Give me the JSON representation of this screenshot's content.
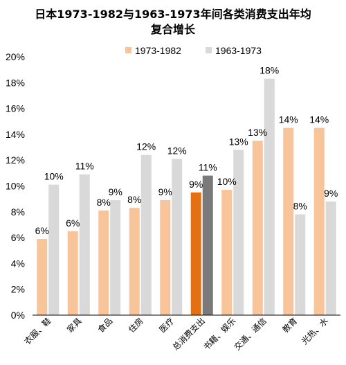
{
  "chart_data": {
    "type": "bar",
    "title_lines": [
      "日本1973-1982与1963-1973年间各类消费支出年均",
      "复合增长"
    ],
    "categories": [
      "衣服、鞋",
      "家具",
      "食品",
      "住房",
      "医疗",
      "总消费支出",
      "书籍、娱乐",
      "交通、通信",
      "教育",
      "光热、水"
    ],
    "series": [
      {
        "name": "1973-1982",
        "values": [
          5.9,
          6.5,
          8.1,
          8.3,
          8.9,
          9.5,
          9.7,
          13.5,
          14.5,
          14.5
        ],
        "labels": [
          "6%",
          "6%",
          "8%",
          "8%",
          "9%",
          "9%",
          "10%",
          "13%",
          "14%",
          "14%"
        ]
      },
      {
        "name": "1963-1973",
        "values": [
          10.1,
          10.9,
          8.9,
          12.4,
          12.1,
          10.8,
          12.8,
          18.3,
          7.8,
          8.8
        ],
        "labels": [
          "10%",
          "11%",
          "9%",
          "12%",
          "12%",
          "11%",
          "13%",
          "18%",
          "8%",
          "9%"
        ]
      }
    ],
    "colors": {
      "series1": "#F8C49A",
      "series2": "#D9D9D9",
      "highlight1": "#E56F13",
      "highlight2": "#7A7A7A"
    },
    "highlight_category": "总消费支出",
    "ylim": [
      0,
      20
    ],
    "yticks": [
      "0%",
      "2%",
      "4%",
      "6%",
      "8%",
      "10%",
      "12%",
      "14%",
      "16%",
      "18%",
      "20%"
    ],
    "grid": false,
    "legend_position": "top"
  }
}
